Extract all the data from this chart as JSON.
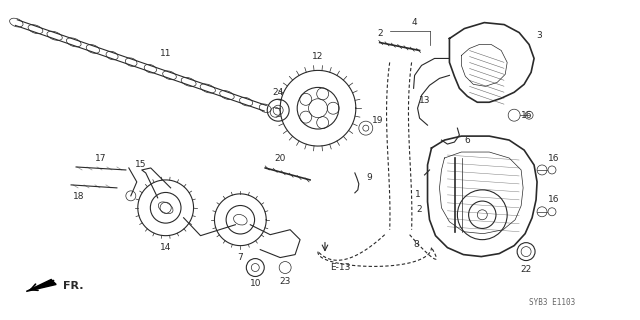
{
  "background_color": "#ffffff",
  "diagram_ref": "SYB3 E1103",
  "fig_width": 6.4,
  "fig_height": 3.2,
  "dpi": 100,
  "line_color": "#2a2a2a",
  "label_fontsize": 6.5
}
